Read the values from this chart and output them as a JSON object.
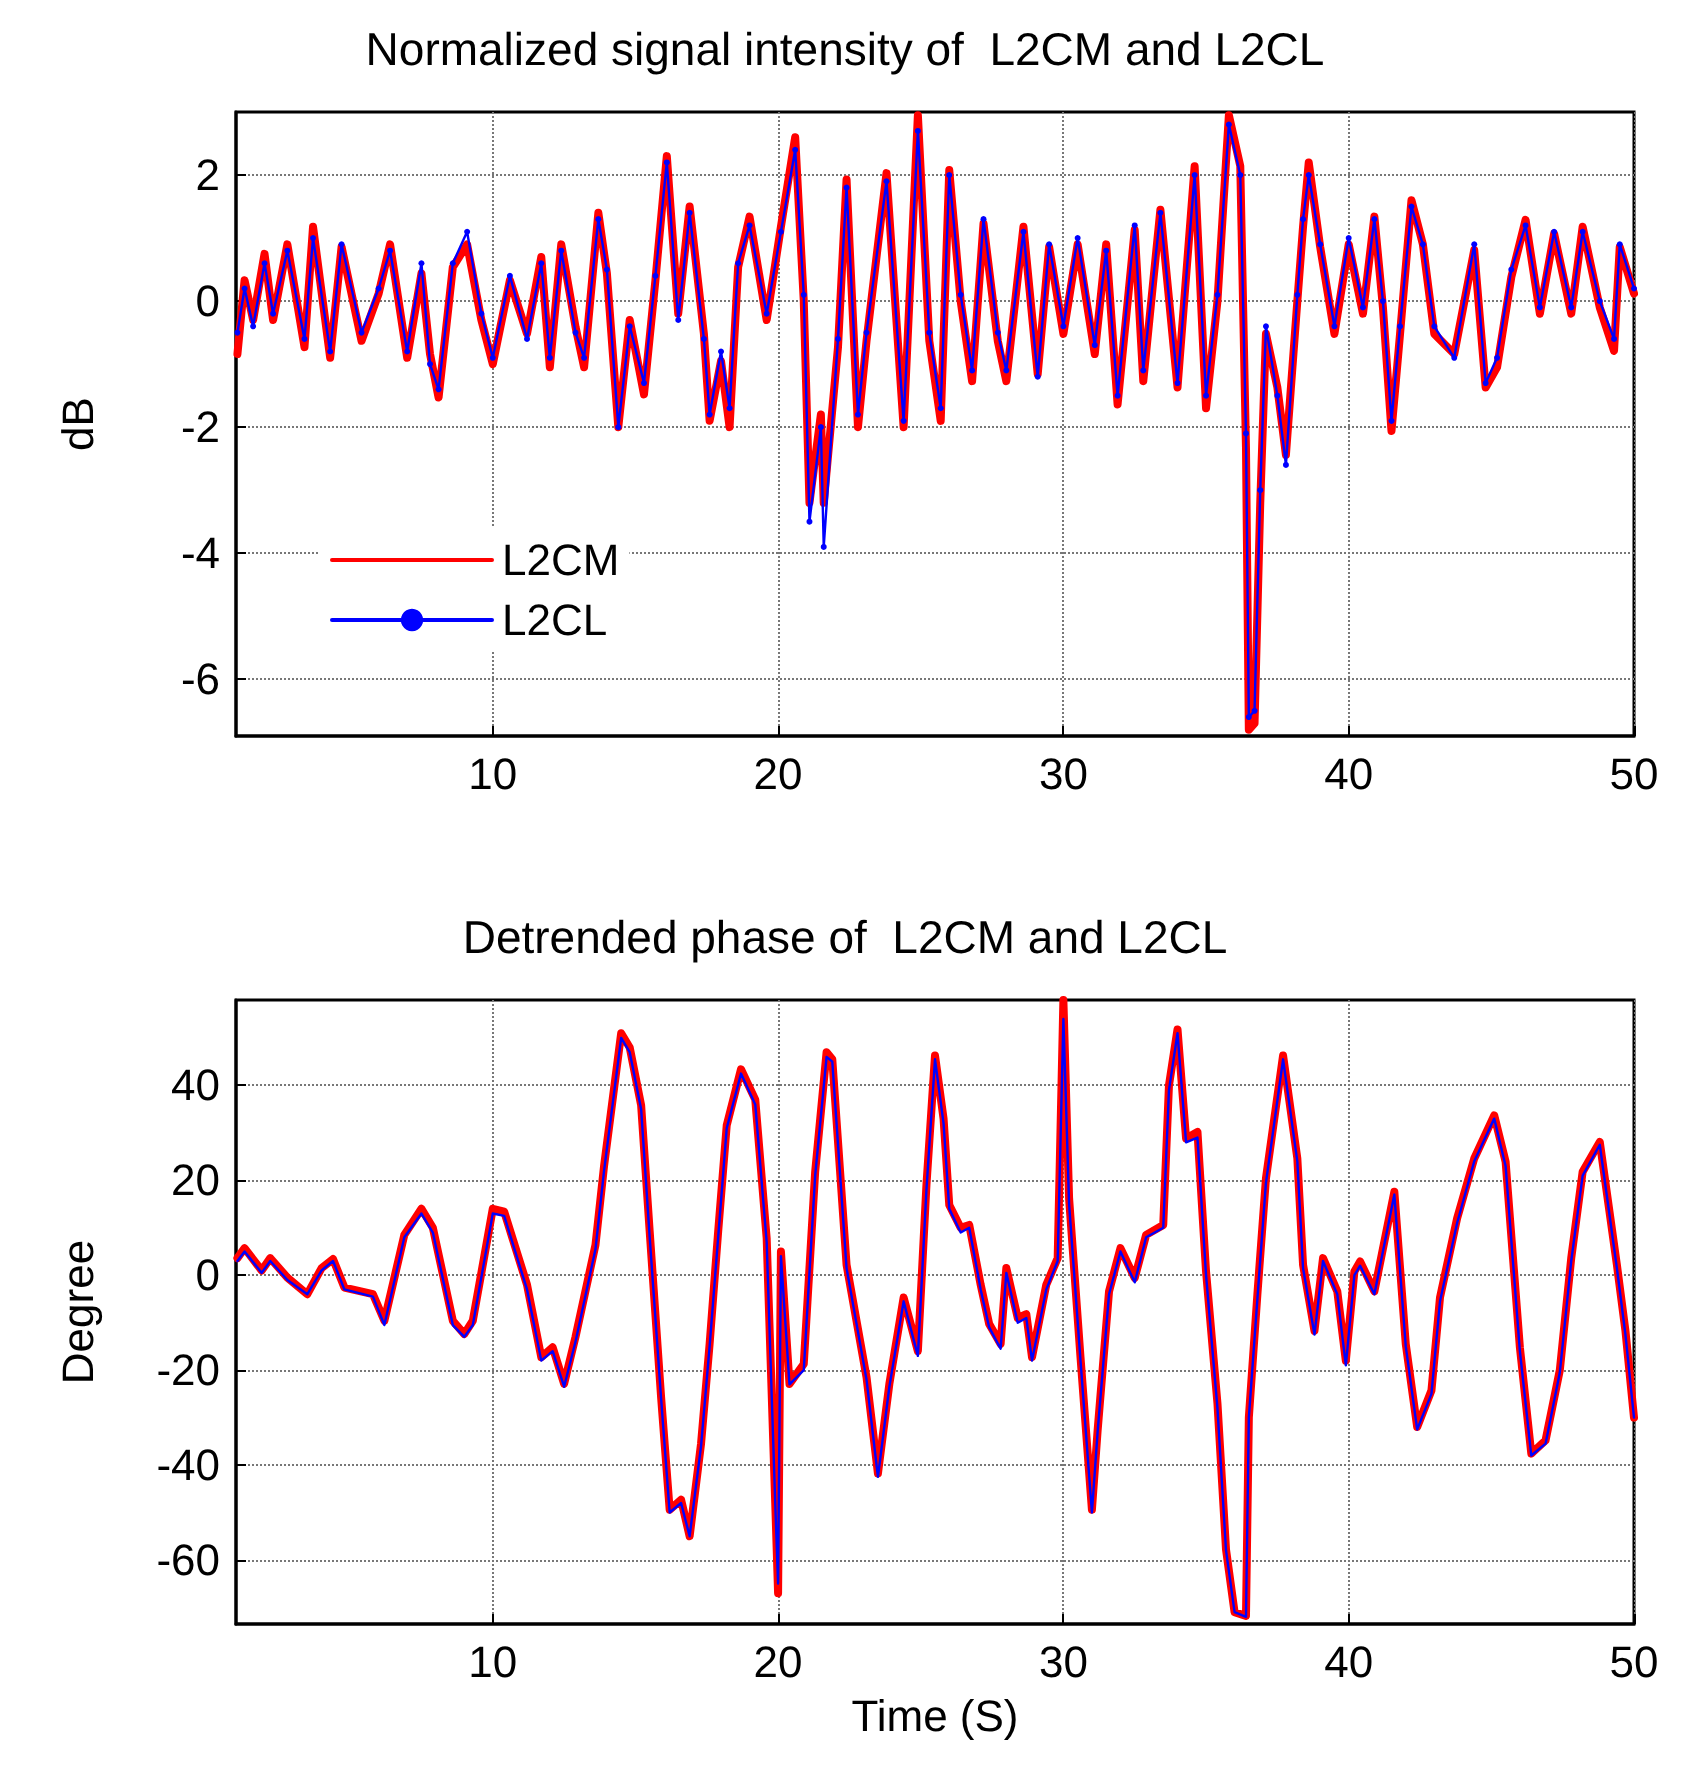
{
  "chart_data": [
    {
      "type": "line",
      "title": "Normalized signal intensity of  L2CM and L2CL",
      "ylabel": "dB",
      "xlim": [
        1,
        50
      ],
      "xticks": [
        10,
        20,
        30,
        40,
        50
      ],
      "ylim": [
        -6.9,
        3
      ],
      "yticks": [
        -6,
        -4,
        -2,
        0,
        2
      ],
      "grid": true,
      "legend": "bottom left",
      "x": [
        1.05,
        1.3,
        1.6,
        2.0,
        2.3,
        2.8,
        3.4,
        3.7,
        4.3,
        4.7,
        5.4,
        6.0,
        6.4,
        7.0,
        7.5,
        7.8,
        8.1,
        8.6,
        9.1,
        9.6,
        10.0,
        10.6,
        11.2,
        11.7,
        12.0,
        12.4,
        12.9,
        13.2,
        13.7,
        14.0,
        14.4,
        14.8,
        15.3,
        15.7,
        16.1,
        16.5,
        16.9,
        17.4,
        17.6,
        18.0,
        18.3,
        18.6,
        19.0,
        19.6,
        20.1,
        20.6,
        20.9,
        21.1,
        21.5,
        21.6,
        22.1,
        22.4,
        22.8,
        23.1,
        23.8,
        24.4,
        24.9,
        25.3,
        25.7,
        26.0,
        26.4,
        26.8,
        27.2,
        27.7,
        28.0,
        28.6,
        29.1,
        29.5,
        30.0,
        30.5,
        31.1,
        31.5,
        31.9,
        32.5,
        32.8,
        33.4,
        34.0,
        34.6,
        35.0,
        35.4,
        35.8,
        36.2,
        36.4,
        36.5,
        36.7,
        36.9,
        37.1,
        37.5,
        37.8,
        38.2,
        38.4,
        38.6,
        39.0,
        39.5,
        40.0,
        40.5,
        40.9,
        41.2,
        41.5,
        41.8,
        42.2,
        42.6,
        43.0,
        43.7,
        44.4,
        44.8,
        45.2,
        45.7,
        46.2,
        46.7,
        47.2,
        47.8,
        48.2,
        48.8,
        49.3,
        49.5,
        50.0
      ],
      "series": [
        {
          "name": "L2CM",
          "color": "#ff0000",
          "line_style": "solid",
          "marker": "none",
          "values": [
            -0.84,
            0.33,
            -0.3,
            0.75,
            -0.3,
            0.9,
            -0.73,
            1.18,
            -0.9,
            0.86,
            -0.63,
            0.12,
            0.9,
            -0.9,
            0.44,
            -0.84,
            -1.53,
            0.54,
            0.9,
            -0.3,
            -1.0,
            0.33,
            -0.52,
            0.7,
            -1.05,
            0.9,
            -0.41,
            -1.05,
            1.4,
            0.44,
            -2.0,
            -0.3,
            -1.48,
            0.33,
            2.3,
            -0.2,
            1.5,
            -0.52,
            -1.9,
            -0.95,
            -2.0,
            0.54,
            1.34,
            -0.3,
            1.18,
            2.6,
            0,
            -3.2,
            -1.8,
            -3.2,
            -0.73,
            1.93,
            -2.0,
            -0.63,
            2.03,
            -2.0,
            2.95,
            -0.63,
            -1.9,
            2.08,
            0,
            -1.27,
            1.23,
            -0.63,
            -1.27,
            1.18,
            -1.16,
            0.86,
            -0.52,
            0.9,
            -0.84,
            0.9,
            -1.64,
            1.13,
            -1.27,
            1.45,
            -1.37,
            2.14,
            -1.7,
            0,
            2.95,
            2.14,
            -2.33,
            -6.8,
            -6.7,
            -3.2,
            -0.52,
            -1.37,
            -2.44,
            0,
            1.18,
            2.2,
            0.86,
            -0.52,
            0.9,
            -0.2,
            1.34,
            -0.1,
            -2.06,
            -0.52,
            1.6,
            0.9,
            -0.52,
            -0.84,
            0.81,
            -1.37,
            -1.05,
            0.38,
            1.29,
            -0.2,
            1.07,
            -0.2,
            1.18,
            -0.1,
            -0.79,
            0.86,
            0.12
          ]
        },
        {
          "name": "L2CL",
          "color": "#0000ff",
          "line_style": "solid",
          "marker": "circle",
          "values": [
            -0.5,
            0.2,
            -0.4,
            0.6,
            -0.2,
            0.8,
            -0.6,
            1.0,
            -0.8,
            0.9,
            -0.5,
            0.2,
            0.8,
            -0.8,
            0.6,
            -1.0,
            -1.4,
            0.6,
            1.1,
            -0.2,
            -0.9,
            0.4,
            -0.6,
            0.6,
            -0.9,
            0.8,
            -0.5,
            -0.9,
            1.3,
            0.5,
            -2.0,
            -0.4,
            -1.3,
            0.4,
            2.2,
            -0.3,
            1.4,
            -0.6,
            -1.8,
            -0.8,
            -1.7,
            0.6,
            1.2,
            -0.2,
            1.1,
            2.4,
            0.1,
            -3.5,
            -2.0,
            -3.9,
            -0.6,
            1.8,
            -1.8,
            -0.5,
            1.9,
            -1.9,
            2.7,
            -0.5,
            -1.7,
            2.0,
            0.1,
            -1.1,
            1.3,
            -0.5,
            -1.1,
            1.1,
            -1.2,
            0.9,
            -0.4,
            1.0,
            -0.7,
            0.8,
            -1.5,
            1.2,
            -1.1,
            1.4,
            -1.3,
            2.0,
            -1.5,
            0.1,
            2.8,
            2.0,
            -2.1,
            -6.6,
            -6.5,
            -3.0,
            -0.4,
            -1.5,
            -2.6,
            0.1,
            1.3,
            2.0,
            0.9,
            -0.4,
            1.0,
            -0.1,
            1.3,
            0,
            -1.9,
            -0.4,
            1.5,
            0.9,
            -0.4,
            -0.9,
            0.9,
            -1.3,
            -0.9,
            0.5,
            1.2,
            -0.1,
            1.1,
            -0.1,
            1.1,
            0,
            -0.6,
            0.9,
            0.2
          ]
        }
      ]
    },
    {
      "type": "line",
      "title": "Detrended phase of  L2CM and L2CL",
      "xlabel": "Time (S)",
      "ylabel": "Degree",
      "xlim": [
        1,
        50
      ],
      "xticks": [
        10,
        20,
        30,
        40,
        50
      ],
      "ylim": [
        -73.5,
        58
      ],
      "yticks": [
        -60,
        -40,
        -20,
        0,
        20,
        40
      ],
      "grid": true,
      "x": [
        1.05,
        1.3,
        1.9,
        2.2,
        2.8,
        3.5,
        4.0,
        4.4,
        4.8,
        5.8,
        6.2,
        6.9,
        7.5,
        7.9,
        8.6,
        9.0,
        9.3,
        10.0,
        10.4,
        11.2,
        11.7,
        12.1,
        12.5,
        12.9,
        13.6,
        13.9,
        14.5,
        14.8,
        15.2,
        15.5,
        15.9,
        16.2,
        16.6,
        16.9,
        17.3,
        17.6,
        17.9,
        18.2,
        18.7,
        19.2,
        19.6,
        19.9,
        20.0,
        20.1,
        20.4,
        20.9,
        21.3,
        21.7,
        21.9,
        22.4,
        23.1,
        23.5,
        23.9,
        24.4,
        24.9,
        25.2,
        25.5,
        25.8,
        26.0,
        26.4,
        26.7,
        27.1,
        27.4,
        27.8,
        28.0,
        28.4,
        28.7,
        28.9,
        29.4,
        29.8,
        30.0,
        30.2,
        30.6,
        31.0,
        31.2,
        31.6,
        32.0,
        32.5,
        32.9,
        33.5,
        33.7,
        34.0,
        34.3,
        34.7,
        35.0,
        35.4,
        35.7,
        36.0,
        36.4,
        36.5,
        36.8,
        37.1,
        37.7,
        38.2,
        38.4,
        38.8,
        39.1,
        39.6,
        39.9,
        40.2,
        40.4,
        40.9,
        41.6,
        42.0,
        42.4,
        42.9,
        43.2,
        43.8,
        44.4,
        45.1,
        45.5,
        46.0,
        46.4,
        46.9,
        47.4,
        47.8,
        48.2,
        48.8,
        49.4,
        49.7,
        50.0
      ],
      "series": [
        {
          "color": "#ff0000",
          "line_style": "solid",
          "marker": "none",
          "values": [
            3.6,
            5.7,
            1,
            3.6,
            -0.5,
            -4,
            1.5,
            3.4,
            -2.6,
            -4,
            -9.6,
            8.5,
            14,
            10,
            -9.6,
            -12.4,
            -9.6,
            14,
            13.4,
            -2,
            -17.3,
            -15.2,
            -22.9,
            -13,
            6.4,
            23,
            51,
            48,
            35.8,
            9.2,
            -25.7,
            -49.4,
            -47.3,
            -55,
            -35.5,
            -14.5,
            9.2,
            31.6,
            43.4,
            37,
            7.8,
            -48,
            -67,
            5,
            -22.9,
            -18.7,
            21.8,
            47,
            45.5,
            2.2,
            -21.5,
            -41.8,
            -22.9,
            -4.7,
            -16,
            19,
            46.3,
            33,
            14.8,
            10,
            10.6,
            -2,
            -10.3,
            -14.5,
            1.5,
            -9,
            -8.2,
            -17.3,
            -2,
            3.6,
            58,
            16.2,
            -17.3,
            -49.4,
            -32.7,
            -3.4,
            5.7,
            -0.6,
            8.5,
            10.6,
            40,
            51.8,
            28.8,
            30.2,
            0.8,
            -27,
            -57.8,
            -71,
            -71.8,
            -30,
            -4,
            20.4,
            46.3,
            24.6,
            2.2,
            -11.7,
            3.6,
            -3.4,
            -18,
            0.8,
            2.9,
            -3.4,
            17.6,
            -14.5,
            -32,
            -24.3,
            -4.7,
            12,
            24.6,
            33.7,
            23.9,
            -15.2,
            -37.6,
            -34.8,
            -20,
            3.6,
            21.8,
            28.1,
            2.2,
            -11.7,
            -30
          ]
        },
        {
          "color": "#0000ff",
          "line_style": "solid",
          "marker": "none",
          "values": [
            3,
            5,
            0.5,
            3,
            -1,
            -4,
            1,
            3,
            -3,
            -4.5,
            -10.5,
            8,
            13,
            9,
            -10.5,
            -13,
            -10.5,
            13,
            12.5,
            -3,
            -18,
            -16,
            -23.5,
            -14,
            5.5,
            22,
            50,
            47,
            35,
            8,
            -26,
            -50,
            -48,
            -55,
            -36,
            -15,
            8,
            31,
            42.5,
            36,
            7,
            -48,
            -65,
            4,
            -23,
            -20,
            21,
            46,
            45,
            1.5,
            -22,
            -42.5,
            -23.5,
            -5.5,
            -17,
            18,
            45.5,
            32,
            14,
            9,
            10,
            -3,
            -11,
            -15.5,
            0.5,
            -10,
            -9,
            -18,
            -3,
            3,
            54,
            15,
            -18,
            -50,
            -33,
            -4,
            5,
            -1.5,
            8,
            10,
            39,
            51,
            28,
            29,
            0,
            -28,
            -58,
            -71,
            -72,
            -30,
            -5,
            19.5,
            45.5,
            24,
            1.5,
            -12.5,
            3,
            -4,
            -19,
            0,
            2,
            -4,
            17,
            -15,
            -32.5,
            -25,
            -5.5,
            11,
            24,
            33,
            23,
            -16,
            -38,
            -35.5,
            -20.5,
            3,
            21,
            27.5,
            1.5,
            -12.5,
            -30
          ]
        }
      ]
    }
  ]
}
